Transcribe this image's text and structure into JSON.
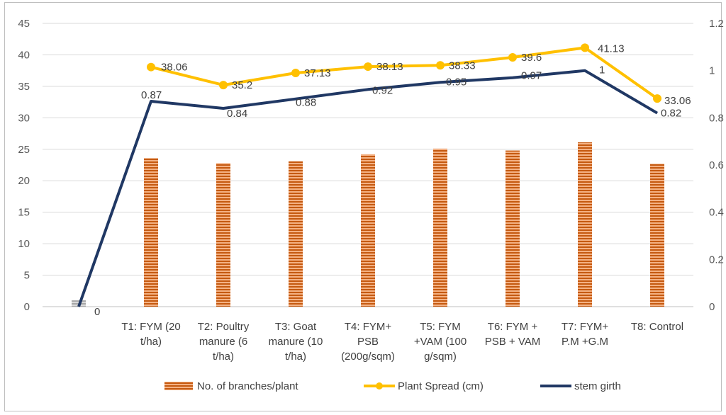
{
  "chart_data": {
    "type": "bar",
    "title": "",
    "categories": [
      "",
      "T1: FYM (20 t/ha)",
      "T2: Poultry manure (6 t/ha)",
      "T3: Goat manure (10 t/ha)",
      "T4: FYM+ PSB (200g/sqm)",
      "T5: FYM +VAM (100 g/sqm)",
      "T6: FYM + PSB + VAM",
      "T7: FYM+ P.M +G.M",
      "T8: Control"
    ],
    "category_lines": [
      [
        ""
      ],
      [
        "T1: FYM (20",
        "t/ha)"
      ],
      [
        "T2: Poultry",
        "manure (6",
        "t/ha)"
      ],
      [
        "T3: Goat",
        "manure (10",
        "t/ha)"
      ],
      [
        "T4: FYM+",
        "PSB",
        "(200g/sqm)"
      ],
      [
        "T5: FYM",
        "+VAM (100",
        "g/sqm)"
      ],
      [
        "T6: FYM +",
        "PSB + VAM"
      ],
      [
        "T7: FYM+",
        "P.M +G.M"
      ],
      [
        "T8: Control"
      ]
    ],
    "y_left": {
      "min": 0,
      "max": 45,
      "step": 5,
      "ticks": [
        "0",
        "5",
        "10",
        "15",
        "20",
        "25",
        "30",
        "35",
        "40",
        "45"
      ]
    },
    "y_right": {
      "min": 0,
      "max": 1.2,
      "ticks": [
        "0",
        "0.2",
        "0.4",
        "0.6",
        "0.8",
        "1",
        "1.2"
      ]
    },
    "grid": true,
    "legend_position": "bottom",
    "series": [
      {
        "name": "No. of branches/plant",
        "kind": "bar",
        "axis": "left",
        "color": "#c55a11",
        "values": [
          1,
          23.6,
          22.8,
          23.1,
          24.2,
          25.1,
          24.8,
          26.1,
          22.7
        ],
        "labels": [
          "",
          "",
          "",
          "",
          "",
          "",
          "",
          "",
          ""
        ]
      },
      {
        "name": "Plant Spread (cm)",
        "kind": "line",
        "axis": "left",
        "color": "#ffc000",
        "values": [
          null,
          38.06,
          35.2,
          37.13,
          38.13,
          38.33,
          39.6,
          41.13,
          33.06
        ],
        "labels": [
          "",
          "38.06",
          "35.2",
          "37.13",
          "38.13",
          "38.33",
          "39.6",
          "41.13",
          "33.06"
        ]
      },
      {
        "name": "stem girth",
        "kind": "line",
        "axis": "right",
        "color": "#203864",
        "values": [
          0,
          0.87,
          0.84,
          0.88,
          0.92,
          0.95,
          0.97,
          1,
          0.82
        ],
        "labels": [
          "0",
          "0.87",
          "0.84",
          "0.88",
          "0.92",
          "0.95",
          "0.97",
          "1",
          "0.82"
        ]
      }
    ]
  }
}
